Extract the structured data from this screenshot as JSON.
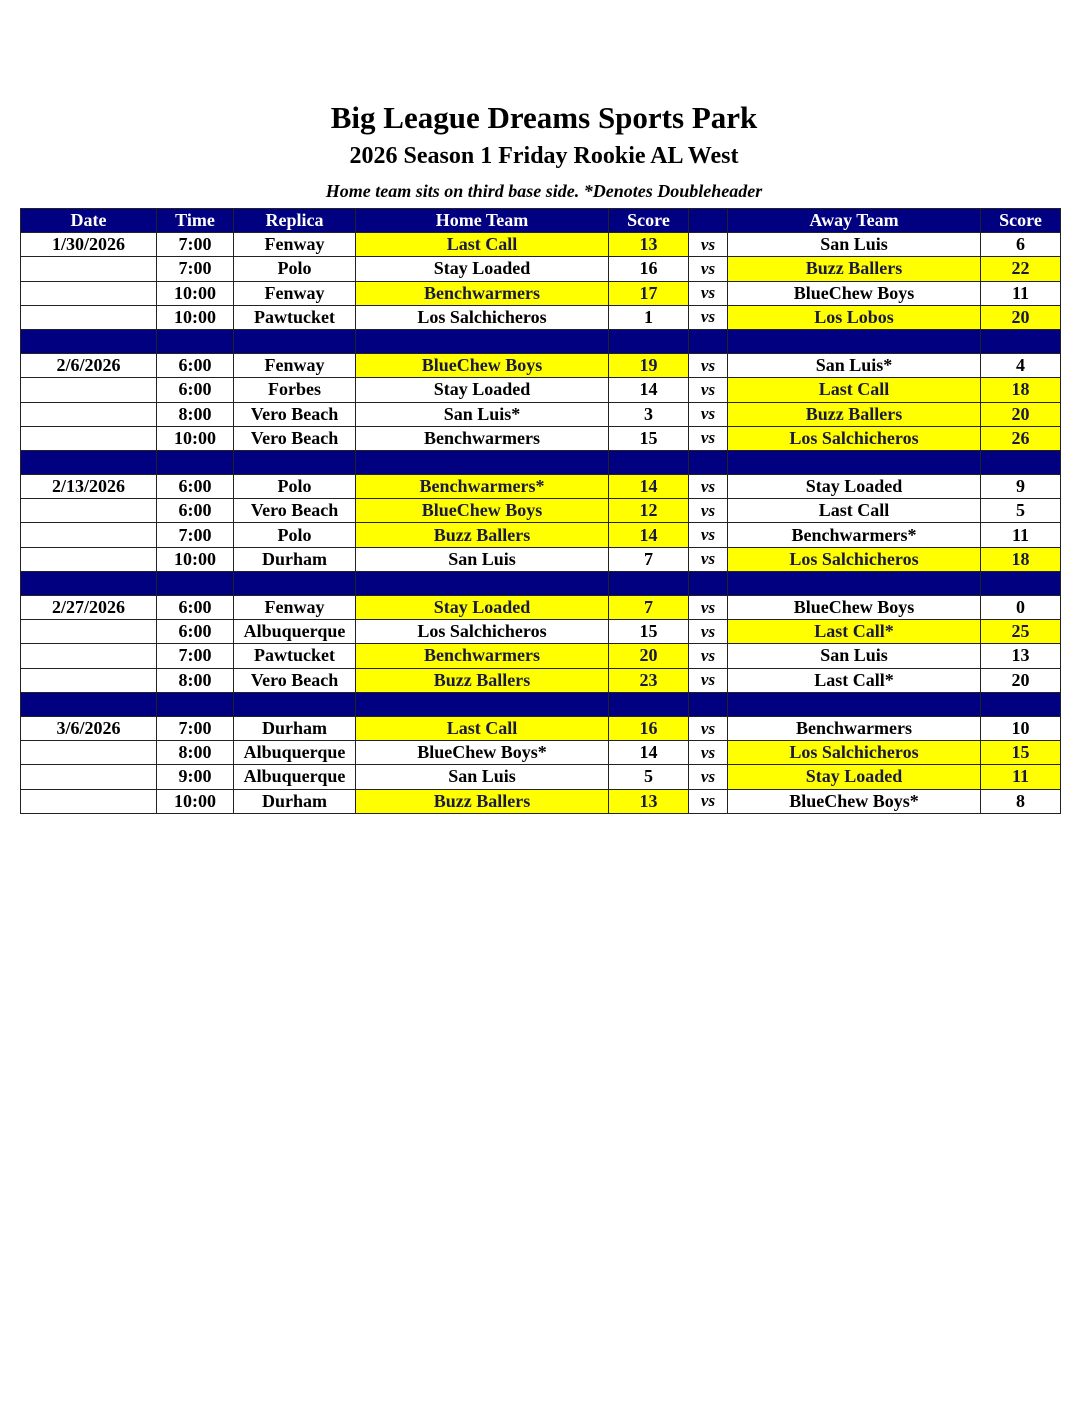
{
  "title": "Big League Dreams Sports Park",
  "subtitle": "2026 Season 1 Friday Rookie AL West",
  "note": "Home team sits on third base side.  *Denotes Doubleheader",
  "colors": {
    "header": "#000080",
    "winner": "#ffff00"
  },
  "columns": [
    "Date",
    "Time",
    "Replica",
    "Home Team",
    "Score",
    "",
    "Away Team",
    "Score"
  ],
  "vs_label": "vs",
  "weeks": [
    {
      "date": "1/30/2026",
      "games": [
        {
          "time": "7:00",
          "replica": "Fenway",
          "home": "Last Call",
          "home_score": "13",
          "away": "San Luis",
          "away_score": "6",
          "winner": "home"
        },
        {
          "time": "7:00",
          "replica": "Polo",
          "home": "Stay Loaded",
          "home_score": "16",
          "away": "Buzz Ballers",
          "away_score": "22",
          "winner": "away"
        },
        {
          "time": "10:00",
          "replica": "Fenway",
          "home": "Benchwarmers",
          "home_score": "17",
          "away": "BlueChew Boys",
          "away_score": "11",
          "winner": "home"
        },
        {
          "time": "10:00",
          "replica": "Pawtucket",
          "home": "Los Salchicheros",
          "home_score": "1",
          "away": "Los Lobos",
          "away_score": "20",
          "winner": "away"
        }
      ]
    },
    {
      "date": "2/6/2026",
      "games": [
        {
          "time": "6:00",
          "replica": "Fenway",
          "home": "BlueChew Boys",
          "home_score": "19",
          "away": "San Luis*",
          "away_score": "4",
          "winner": "home"
        },
        {
          "time": "6:00",
          "replica": "Forbes",
          "home": "Stay Loaded",
          "home_score": "14",
          "away": "Last Call",
          "away_score": "18",
          "winner": "away"
        },
        {
          "time": "8:00",
          "replica": "Vero Beach",
          "home": "San Luis*",
          "home_score": "3",
          "away": "Buzz Ballers",
          "away_score": "20",
          "winner": "away"
        },
        {
          "time": "10:00",
          "replica": "Vero Beach",
          "home": "Benchwarmers",
          "home_score": "15",
          "away": "Los Salchicheros",
          "away_score": "26",
          "winner": "away"
        }
      ]
    },
    {
      "date": "2/13/2026",
      "games": [
        {
          "time": "6:00",
          "replica": "Polo",
          "home": "Benchwarmers*",
          "home_score": "14",
          "away": "Stay Loaded",
          "away_score": "9",
          "winner": "home"
        },
        {
          "time": "6:00",
          "replica": "Vero Beach",
          "home": "BlueChew Boys",
          "home_score": "12",
          "away": "Last Call",
          "away_score": "5",
          "winner": "home"
        },
        {
          "time": "7:00",
          "replica": "Polo",
          "home": "Buzz Ballers",
          "home_score": "14",
          "away": "Benchwarmers*",
          "away_score": "11",
          "winner": "home"
        },
        {
          "time": "10:00",
          "replica": "Durham",
          "home": "San Luis",
          "home_score": "7",
          "away": "Los Salchicheros",
          "away_score": "18",
          "winner": "away"
        }
      ]
    },
    {
      "date": "2/27/2026",
      "games": [
        {
          "time": "6:00",
          "replica": "Fenway",
          "home": "Stay Loaded",
          "home_score": "7",
          "away": "BlueChew Boys",
          "away_score": "0",
          "winner": "home"
        },
        {
          "time": "6:00",
          "replica": "Albuquerque",
          "home": "Los Salchicheros",
          "home_score": "15",
          "away": "Last Call*",
          "away_score": "25",
          "winner": "away"
        },
        {
          "time": "7:00",
          "replica": "Pawtucket",
          "home": "Benchwarmers",
          "home_score": "20",
          "away": "San Luis",
          "away_score": "13",
          "winner": "home"
        },
        {
          "time": "8:00",
          "replica": "Vero Beach",
          "home": "Buzz Ballers",
          "home_score": "23",
          "away": "Last Call*",
          "away_score": "20",
          "winner": "home"
        }
      ]
    },
    {
      "date": "3/6/2026",
      "games": [
        {
          "time": "7:00",
          "replica": "Durham",
          "home": "Last Call",
          "home_score": "16",
          "away": "Benchwarmers",
          "away_score": "10",
          "winner": "home"
        },
        {
          "time": "8:00",
          "replica": "Albuquerque",
          "home": "BlueChew Boys*",
          "home_score": "14",
          "away": "Los Salchicheros",
          "away_score": "15",
          "winner": "away"
        },
        {
          "time": "9:00",
          "replica": "Albuquerque",
          "home": "San Luis",
          "home_score": "5",
          "away": "Stay Loaded",
          "away_score": "11",
          "winner": "away"
        },
        {
          "time": "10:00",
          "replica": "Durham",
          "home": "Buzz Ballers",
          "home_score": "13",
          "away": "BlueChew Boys*",
          "away_score": "8",
          "winner": "home"
        }
      ]
    }
  ]
}
